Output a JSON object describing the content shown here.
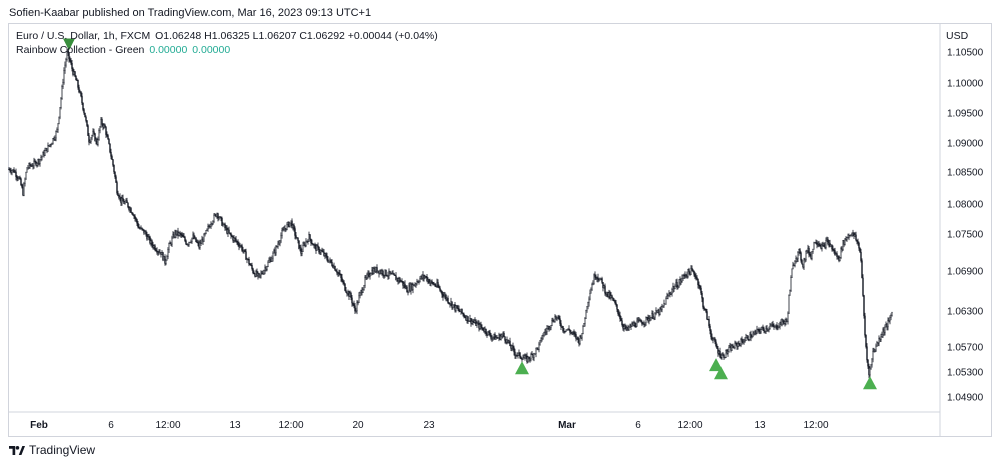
{
  "publisher_line": "Sofien-Kaabar published on TradingView.com, Mar 16, 2023 09:13 UTC+1",
  "legend": {
    "symbol": "Euro / U.S. Dollar, 1h, FXCM",
    "ohlc": "O1.06248  H1.06325  L1.06207  C1.06292  +0.00044 (+0.04%)",
    "indicator_name": "Rainbow Collection - Green",
    "indicator_value_1": "0.00000",
    "indicator_value_2": "0.00000"
  },
  "currency_label": "USD",
  "footer": {
    "brand": "TradingView"
  },
  "colors": {
    "candle": "#131722",
    "bullish_signal": "#4caf50",
    "bearish_signal": "#388e3c",
    "indicator_text": "#22ab94"
  },
  "chart_data": {
    "type": "candlestick",
    "title": "Euro / U.S. Dollar, 1h, FXCM",
    "ylabel": "USD",
    "yticks": [
      "1.10500",
      "1.10000",
      "1.09500",
      "1.09000",
      "1.08500",
      "1.08000",
      "1.07500",
      "1.06900",
      "1.06300",
      "1.05700",
      "1.05300",
      "1.04900"
    ],
    "ylim": [
      1.0475,
      1.1075
    ],
    "xticks": [
      {
        "label": "Feb",
        "bold": true,
        "t": 30
      },
      {
        "label": "6",
        "t": 102
      },
      {
        "label": "12:00",
        "t": 159
      },
      {
        "label": "13",
        "t": 226
      },
      {
        "label": "12:00",
        "t": 282
      },
      {
        "label": "20",
        "t": 349
      },
      {
        "label": "23",
        "t": 420
      },
      {
        "label": "Mar",
        "bold": true,
        "t": 558
      },
      {
        "label": "6",
        "t": 629
      },
      {
        "label": "12:00",
        "t": 681
      },
      {
        "label": "13",
        "t": 751
      },
      {
        "label": "12:00",
        "t": 807
      }
    ],
    "price_path": [
      [
        0,
        1.0855
      ],
      [
        5,
        1.0852
      ],
      [
        10,
        1.084
      ],
      [
        14,
        1.0818
      ],
      [
        18,
        1.0858
      ],
      [
        24,
        1.0863
      ],
      [
        30,
        1.087
      ],
      [
        36,
        1.0885
      ],
      [
        42,
        1.09
      ],
      [
        48,
        1.092
      ],
      [
        52,
        1.0975
      ],
      [
        55,
        1.102
      ],
      [
        58,
        1.1048
      ],
      [
        61,
        1.1035
      ],
      [
        64,
        1.1018
      ],
      [
        68,
        1.1
      ],
      [
        72,
        1.0975
      ],
      [
        76,
        1.0945
      ],
      [
        80,
        1.0905
      ],
      [
        84,
        1.0915
      ],
      [
        88,
        1.09
      ],
      [
        92,
        1.0935
      ],
      [
        96,
        1.0925
      ],
      [
        100,
        1.0895
      ],
      [
        104,
        1.0862
      ],
      [
        108,
        1.0822
      ],
      [
        112,
        1.0805
      ],
      [
        118,
        1.08
      ],
      [
        124,
        1.0785
      ],
      [
        130,
        1.076
      ],
      [
        136,
        1.0752
      ],
      [
        142,
        1.0735
      ],
      [
        148,
        1.0725
      ],
      [
        152,
        1.072
      ],
      [
        156,
        1.0705
      ],
      [
        160,
        1.073
      ],
      [
        166,
        1.0752
      ],
      [
        172,
        1.0748
      ],
      [
        178,
        1.0735
      ],
      [
        184,
        1.0745
      ],
      [
        190,
        1.073
      ],
      [
        196,
        1.0748
      ],
      [
        202,
        1.077
      ],
      [
        208,
        1.0785
      ],
      [
        214,
        1.0765
      ],
      [
        220,
        1.075
      ],
      [
        226,
        1.074
      ],
      [
        232,
        1.073
      ],
      [
        238,
        1.071
      ],
      [
        244,
        1.069
      ],
      [
        250,
        1.068
      ],
      [
        256,
        1.0695
      ],
      [
        262,
        1.071
      ],
      [
        268,
        1.073
      ],
      [
        272,
        1.0748
      ],
      [
        276,
        1.076
      ],
      [
        282,
        1.077
      ],
      [
        288,
        1.074
      ],
      [
        292,
        1.072
      ],
      [
        296,
        1.0735
      ],
      [
        300,
        1.0745
      ],
      [
        306,
        1.0728
      ],
      [
        312,
        1.0722
      ],
      [
        318,
        1.071
      ],
      [
        324,
        1.07
      ],
      [
        330,
        1.0685
      ],
      [
        336,
        1.0665
      ],
      [
        342,
        1.065
      ],
      [
        346,
        1.063
      ],
      [
        350,
        1.065
      ],
      [
        356,
        1.0675
      ],
      [
        362,
        1.069
      ],
      [
        368,
        1.0692
      ],
      [
        374,
        1.0688
      ],
      [
        380,
        1.0685
      ],
      [
        386,
        1.068
      ],
      [
        392,
        1.0675
      ],
      [
        398,
        1.0662
      ],
      [
        404,
        1.0668
      ],
      [
        410,
        1.0678
      ],
      [
        416,
        1.0682
      ],
      [
        422,
        1.0672
      ],
      [
        428,
        1.0668
      ],
      [
        434,
        1.0655
      ],
      [
        440,
        1.0645
      ],
      [
        446,
        1.0635
      ],
      [
        452,
        1.0628
      ],
      [
        458,
        1.0618
      ],
      [
        464,
        1.0612
      ],
      [
        470,
        1.0605
      ],
      [
        476,
        1.0598
      ],
      [
        482,
        1.0588
      ],
      [
        488,
        1.0585
      ],
      [
        494,
        1.059
      ],
      [
        500,
        1.0575
      ],
      [
        506,
        1.056
      ],
      [
        512,
        1.0555
      ],
      [
        518,
        1.055
      ],
      [
        524,
        1.0558
      ],
      [
        530,
        1.0572
      ],
      [
        534,
        1.059
      ],
      [
        540,
        1.0605
      ],
      [
        546,
        1.062
      ],
      [
        550,
        1.0615
      ],
      [
        554,
        1.06
      ],
      [
        560,
        1.0598
      ],
      [
        566,
        1.0588
      ],
      [
        570,
        1.058
      ],
      [
        574,
        1.06
      ],
      [
        578,
        1.064
      ],
      [
        582,
        1.0665
      ],
      [
        586,
        1.0685
      ],
      [
        590,
        1.068
      ],
      [
        594,
        1.0668
      ],
      [
        598,
        1.0655
      ],
      [
        602,
        1.065
      ],
      [
        606,
        1.064
      ],
      [
        610,
        1.0625
      ],
      [
        614,
        1.0605
      ],
      [
        618,
        1.0598
      ],
      [
        622,
        1.0605
      ],
      [
        628,
        1.061
      ],
      [
        634,
        1.0612
      ],
      [
        640,
        1.0618
      ],
      [
        646,
        1.0625
      ],
      [
        652,
        1.063
      ],
      [
        658,
        1.065
      ],
      [
        664,
        1.0665
      ],
      [
        670,
        1.0672
      ],
      [
        676,
        1.0685
      ],
      [
        682,
        1.069
      ],
      [
        686,
        1.0685
      ],
      [
        690,
        1.067
      ],
      [
        694,
        1.064
      ],
      [
        698,
        1.062
      ],
      [
        702,
        1.059
      ],
      [
        706,
        1.0575
      ],
      [
        710,
        1.056
      ],
      [
        714,
        1.0555
      ],
      [
        718,
        1.0562
      ],
      [
        722,
        1.0568
      ],
      [
        726,
        1.0572
      ],
      [
        732,
        1.0578
      ],
      [
        738,
        1.0585
      ],
      [
        744,
        1.059
      ],
      [
        750,
        1.0598
      ],
      [
        756,
        1.06
      ],
      [
        762,
        1.0605
      ],
      [
        766,
        1.0602
      ],
      [
        770,
        1.0608
      ],
      [
        774,
        1.0612
      ],
      [
        778,
        1.0612
      ],
      [
        780,
        1.065
      ],
      [
        783,
        1.069
      ],
      [
        786,
        1.071
      ],
      [
        790,
        1.072
      ],
      [
        794,
        1.07
      ],
      [
        798,
        1.0725
      ],
      [
        802,
        1.0715
      ],
      [
        806,
        1.074
      ],
      [
        810,
        1.0735
      ],
      [
        814,
        1.0728
      ],
      [
        818,
        1.0738
      ],
      [
        822,
        1.073
      ],
      [
        826,
        1.0718
      ],
      [
        830,
        1.071
      ],
      [
        834,
        1.0735
      ],
      [
        838,
        1.0745
      ],
      [
        842,
        1.0752
      ],
      [
        846,
        1.0745
      ],
      [
        850,
        1.073
      ],
      [
        852,
        1.071
      ],
      [
        854,
        1.065
      ],
      [
        856,
        1.059
      ],
      [
        858,
        1.055
      ],
      [
        860,
        1.053
      ],
      [
        862,
        1.054
      ],
      [
        864,
        1.0562
      ],
      [
        868,
        1.0575
      ],
      [
        872,
        1.059
      ],
      [
        876,
        1.0602
      ],
      [
        880,
        1.0612
      ],
      [
        883,
        1.0628
      ]
    ],
    "signals": [
      {
        "type": "bearish",
        "t": 60,
        "price": 1.1062
      },
      {
        "type": "bullish",
        "t": 513,
        "price": 1.0536
      },
      {
        "type": "bullish",
        "t": 707,
        "price": 1.0541
      },
      {
        "type": "bullish",
        "t": 712,
        "price": 1.0528
      },
      {
        "type": "bullish",
        "t": 861,
        "price": 1.0512
      }
    ]
  }
}
